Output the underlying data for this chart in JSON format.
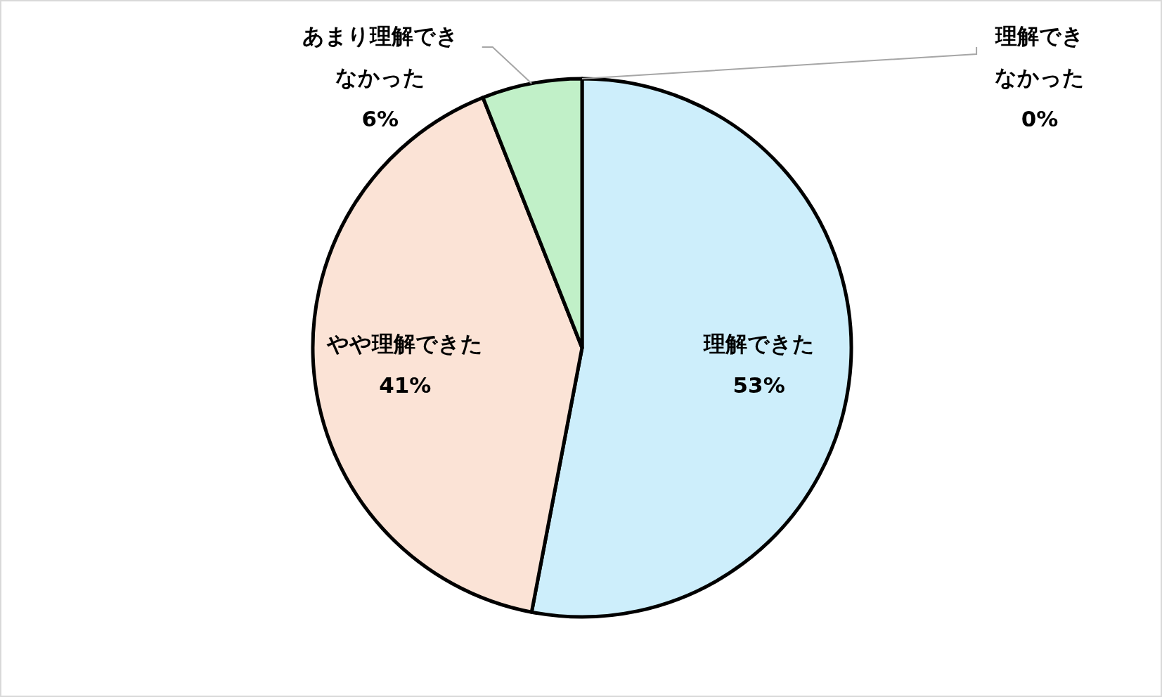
{
  "chart_data": {
    "type": "pie",
    "categories": [
      "理解できた",
      "やや理解できた",
      "あまり理解できなかった",
      "理解できなかった"
    ],
    "values": [
      53,
      41,
      6,
      0
    ],
    "colors": [
      "#cdeefb",
      "#fbe3d6",
      "#c1f0c8",
      null
    ],
    "value_labels": [
      "53%",
      "41%",
      "6%",
      "0%"
    ]
  }
}
